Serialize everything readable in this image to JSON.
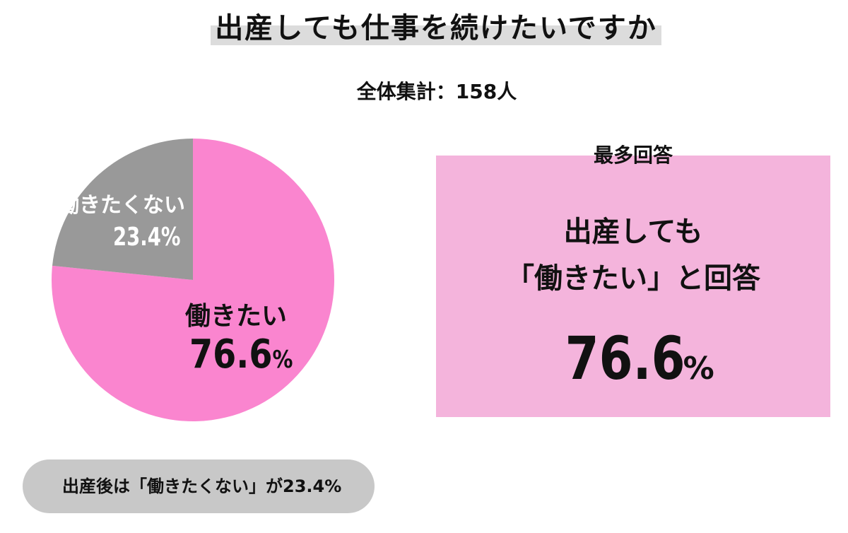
{
  "title": "出産しても仕事を続けたいですか",
  "subtitle": "全体集計：158人",
  "chart_data": {
    "type": "pie",
    "categories": [
      "働きたい",
      "働きたくない"
    ],
    "values": [
      76.6,
      23.4
    ],
    "unit": "%",
    "colors": [
      "#fa85cf",
      "#999999"
    ],
    "labels": [
      {
        "name": "働きたい",
        "percent": "76.6",
        "unit": "%"
      },
      {
        "name": "働きたくない",
        "percent": "23.4%"
      }
    ]
  },
  "highlight": {
    "label": "最多回答",
    "line1": "出産しても",
    "line2": "「働きたい」と回答",
    "percent": "76.6",
    "unit": "%",
    "color": "#f4b4dc"
  },
  "footnote": {
    "text": "出産後は「働きたくない」が23.4%",
    "color": "#c8c8c8"
  }
}
